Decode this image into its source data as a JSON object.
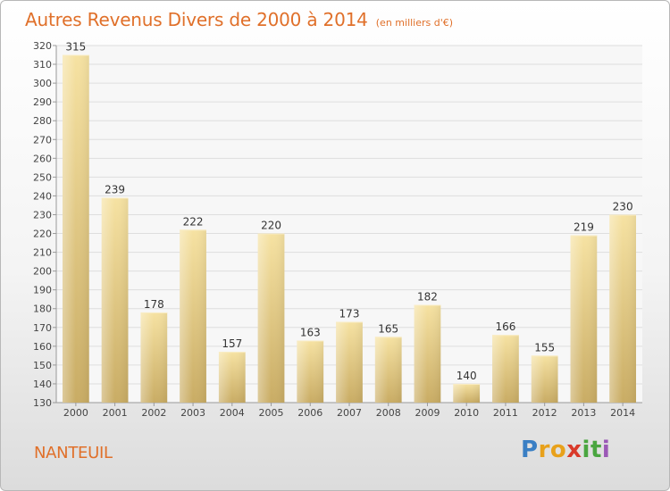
{
  "title": "Autres Revenus Divers de 2000 à 2014",
  "subtitle": "(en milliers d'€)",
  "commune": "NANTEUIL",
  "logo": {
    "letters": [
      "P",
      "r",
      "o",
      "x",
      "i",
      "t",
      "i"
    ],
    "colors": [
      "#3a7fc4",
      "#e8a11b",
      "#e8a11b",
      "#d93a2a",
      "#4aa640",
      "#4aa640",
      "#9b59b6"
    ]
  },
  "colors": {
    "accent": "#e0702a",
    "bar_light": "#f6e2a2",
    "bar_dark": "#c9ac64",
    "grid": "#dedede"
  },
  "chart_data": {
    "type": "bar",
    "categories": [
      "2000",
      "2001",
      "2002",
      "2003",
      "2004",
      "2005",
      "2006",
      "2007",
      "2008",
      "2009",
      "2010",
      "2011",
      "2012",
      "2013",
      "2014"
    ],
    "values": [
      315,
      239,
      178,
      222,
      157,
      220,
      163,
      173,
      165,
      182,
      140,
      166,
      155,
      219,
      230
    ],
    "ylim": [
      130,
      320
    ],
    "ytick_step": 10,
    "grid": true,
    "data_labels": true
  }
}
